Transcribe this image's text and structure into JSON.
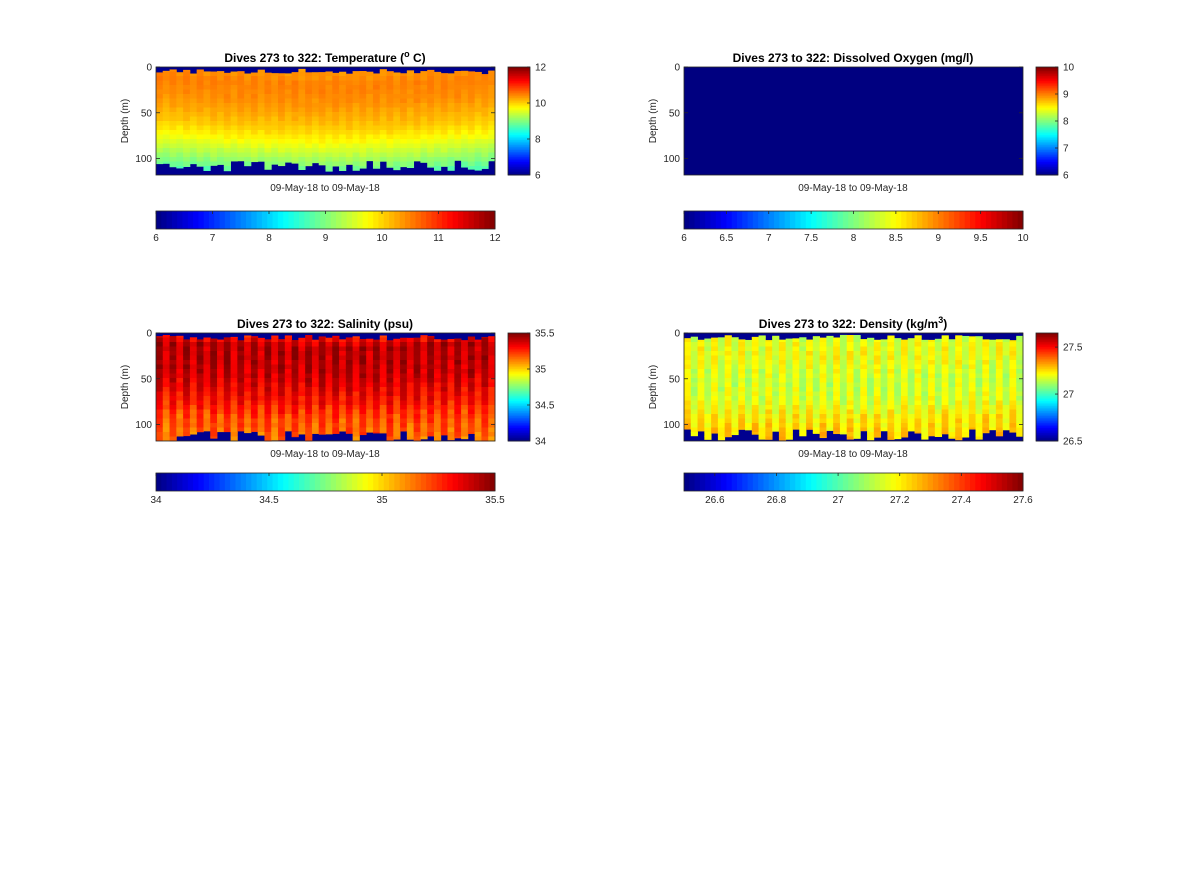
{
  "chart_data": [
    {
      "type": "heatmap",
      "variable": "temperature",
      "title": "Dives 273 to 322: Temperature (",
      "title_sup": "o",
      "title_tail": " C)",
      "xlabel": "09-May-18 to 09-May-18",
      "ylabel": "Depth (m)",
      "ylim": [
        0,
        118
      ],
      "yticks": [
        0,
        50,
        100
      ],
      "ytick_labels": [
        "0",
        "50",
        "100"
      ],
      "clim": [
        6,
        12
      ],
      "colorbar_ticks": [
        6,
        8,
        10,
        12
      ],
      "colorbar_tick_labels": [
        "6",
        "8",
        "10",
        "12"
      ],
      "h_colorbar_ticks": [
        6,
        7,
        8,
        9,
        10,
        11,
        12
      ],
      "h_colorbar_tick_labels": [
        "6",
        "7",
        "8",
        "9",
        "10",
        "11",
        "12"
      ],
      "colormap": "jet",
      "dives": [
        273,
        322
      ],
      "profile": {
        "depth": [
          0,
          10,
          30,
          55,
          70,
          85,
          100,
          115
        ],
        "value": [
          10.4,
          10.5,
          10.4,
          10.1,
          9.8,
          9.4,
          9.0,
          8.5
        ]
      },
      "bottom_depth_m": 105,
      "missing_value_color": "#00008f"
    },
    {
      "type": "heatmap",
      "variable": "dissolved_oxygen",
      "title": "Dives 273 to 322: Dissolved Oxygen (mg/l)",
      "xlabel": "09-May-18 to 09-May-18",
      "ylabel": "Depth (m)",
      "ylim": [
        0,
        118
      ],
      "yticks": [
        0,
        50,
        100
      ],
      "ytick_labels": [
        "0",
        "50",
        "100"
      ],
      "clim": [
        6,
        10
      ],
      "colorbar_ticks": [
        6,
        7,
        8,
        9,
        10
      ],
      "colorbar_tick_labels": [
        "6",
        "7",
        "8",
        "9",
        "10"
      ],
      "h_colorbar_ticks": [
        6,
        6.5,
        7,
        7.5,
        8,
        8.5,
        9,
        9.5,
        10
      ],
      "h_colorbar_tick_labels": [
        "6",
        "6.5",
        "7",
        "7.5",
        "8",
        "8.5",
        "9",
        "9.5",
        "10"
      ],
      "colormap": "jet",
      "dives": [
        273,
        322
      ],
      "uniform_value": 6,
      "missing_value_color": "#00008f"
    },
    {
      "type": "heatmap",
      "variable": "salinity",
      "title": "Dives 273 to 322: Salinity (psu)",
      "xlabel": "09-May-18 to 09-May-18",
      "ylabel": "Depth (m)",
      "ylim": [
        0,
        118
      ],
      "yticks": [
        0,
        50,
        100
      ],
      "ytick_labels": [
        "0",
        "50",
        "100"
      ],
      "clim": [
        34,
        35.5
      ],
      "colorbar_ticks": [
        34,
        34.5,
        35,
        35.5
      ],
      "colorbar_tick_labels": [
        "34",
        "34.5",
        "35",
        "35.5"
      ],
      "h_colorbar_ticks": [
        34,
        34.5,
        35,
        35.5
      ],
      "h_colorbar_tick_labels": [
        "34",
        "34.5",
        "35",
        "35.5"
      ],
      "colormap": "jet",
      "dives": [
        273,
        322
      ],
      "profile": {
        "depth": [
          0,
          10,
          40,
          70,
          90,
          115
        ],
        "value": [
          35.3,
          35.42,
          35.4,
          35.3,
          35.2,
          35.15
        ]
      },
      "bottom_depth_m": 110,
      "missing_value_color": "#00008f"
    },
    {
      "type": "heatmap",
      "variable": "density",
      "title": "Dives 273 to 322: Density (kg/m",
      "title_sup": "3",
      "title_tail": ")",
      "xlabel": "09-May-18 to 09-May-18",
      "ylabel": "Depth (m)",
      "ylim": [
        0,
        118
      ],
      "yticks": [
        0,
        50,
        100
      ],
      "ytick_labels": [
        "0",
        "50",
        "100"
      ],
      "clim": [
        26.5,
        27.65
      ],
      "colorbar_ticks": [
        26.5,
        27,
        27.5
      ],
      "colorbar_tick_labels": [
        "26.5",
        "27",
        "27.5"
      ],
      "h_colorbar_ticks": [
        26.6,
        26.8,
        27,
        27.2,
        27.4,
        27.6
      ],
      "h_colorbar_tick_labels": [
        "26.6",
        "26.8",
        "27",
        "27.2",
        "27.4",
        "27.6"
      ],
      "h_clim": [
        26.5,
        27.6
      ],
      "colormap": "jet",
      "dives": [
        273,
        322
      ],
      "profile": {
        "depth": [
          0,
          20,
          50,
          70,
          90,
          115
        ],
        "value": [
          27.18,
          27.2,
          27.16,
          27.18,
          27.24,
          27.28
        ]
      },
      "bottom_depth_m": 108,
      "missing_value_color": "#00008f"
    }
  ]
}
